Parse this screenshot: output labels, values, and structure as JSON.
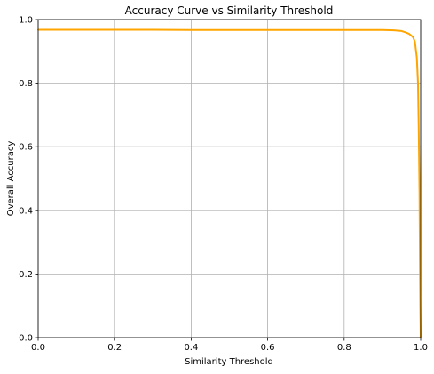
{
  "chart_data": {
    "type": "line",
    "title": "Accuracy Curve vs Similarity Threshold",
    "xlabel": "Similarity Threshold",
    "ylabel": "Overall Accuracy",
    "xlim": [
      0.0,
      1.0
    ],
    "ylim": [
      0.0,
      1.0
    ],
    "xticks": [
      "0.0",
      "0.2",
      "0.4",
      "0.6",
      "0.8",
      "1.0"
    ],
    "yticks": [
      "0.0",
      "0.2",
      "0.4",
      "0.6",
      "0.8",
      "1.0"
    ],
    "grid": true,
    "legend": "none",
    "series": [
      {
        "color": "#ffa500",
        "x": [
          0.0,
          0.1,
          0.2,
          0.3,
          0.4,
          0.5,
          0.6,
          0.7,
          0.8,
          0.9,
          0.93,
          0.95,
          0.96,
          0.97,
          0.98,
          0.985,
          0.99,
          0.993,
          0.995,
          0.997,
          0.998,
          0.999,
          1.0
        ],
        "y": [
          0.968,
          0.968,
          0.968,
          0.968,
          0.967,
          0.967,
          0.967,
          0.967,
          0.967,
          0.967,
          0.966,
          0.964,
          0.96,
          0.955,
          0.945,
          0.93,
          0.88,
          0.8,
          0.65,
          0.45,
          0.25,
          0.1,
          0.0
        ]
      }
    ]
  }
}
